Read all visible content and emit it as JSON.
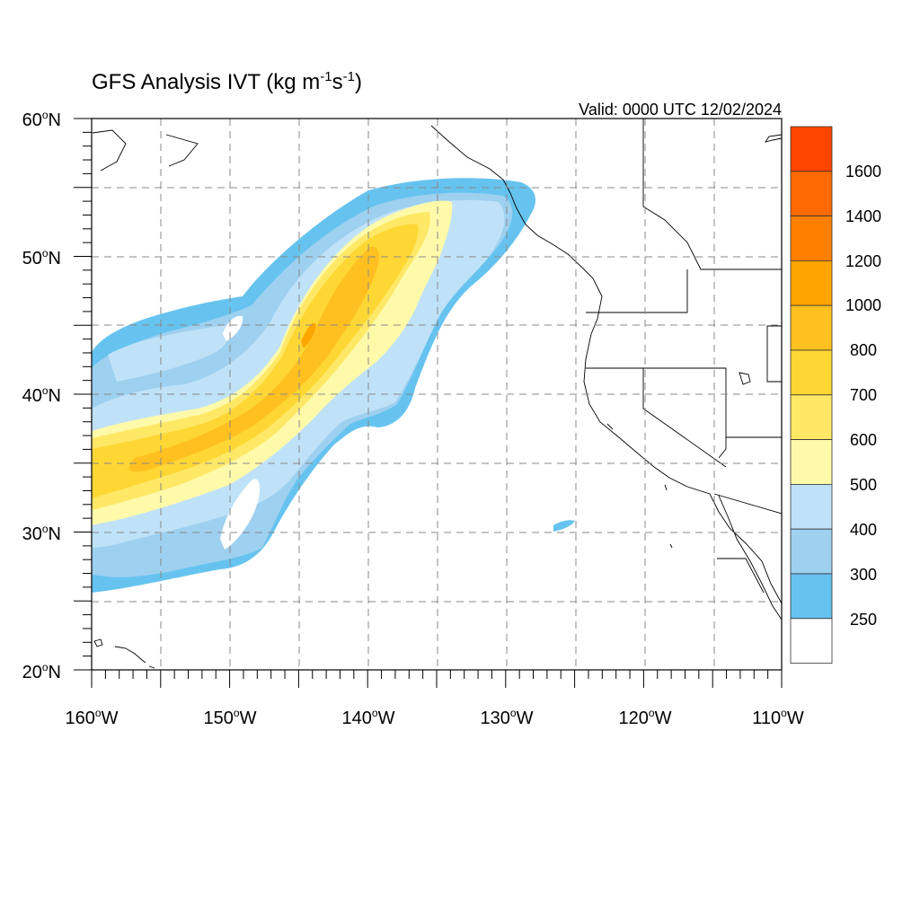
{
  "title": {
    "text": "GFS Analysis IVT (kg m",
    "sup1": "-1",
    "mid": "s",
    "sup2": "-1",
    "end": ")"
  },
  "valid": "Valid: 0000 UTC 12/02/2024",
  "axes": {
    "lat_labels": [
      "60",
      "50",
      "40",
      "30",
      "20"
    ],
    "lat_suffix": "N",
    "lon_labels": [
      "160",
      "150",
      "140",
      "130",
      "120",
      "110"
    ],
    "lon_suffix": "W",
    "degree": "o",
    "lat_range": [
      20,
      60
    ],
    "lon_range": [
      -160,
      -110
    ],
    "grid_spacing_deg": 5,
    "grid": "on, dashed"
  },
  "colorbar": {
    "labels": [
      "1600",
      "1400",
      "1200",
      "1000",
      "800",
      "700",
      "600",
      "500",
      "400",
      "300",
      "250"
    ],
    "colors_top_to_bottom": [
      "#ff4500",
      "#ff6a00",
      "#ff8000",
      "#ffa500",
      "#ffc020",
      "#ffd734",
      "#ffe866",
      "#fffaaa",
      "#bfe2f8",
      "#9ed0f0",
      "#66c3f0",
      "#ffffff"
    ]
  },
  "chart_data": {
    "type": "heatmap",
    "variable": "IVT",
    "units": "kg m-1 s-1",
    "levels": [
      250,
      300,
      400,
      500,
      600,
      700,
      800,
      1000,
      1200,
      1400,
      1600
    ],
    "domain": {
      "lon": [
        -160,
        -110
      ],
      "lat": [
        20,
        60
      ]
    },
    "feature": "atmospheric river from ~32N 160W northeast to ~53N 135W, peak ~800-1000 near 44N 145W"
  }
}
